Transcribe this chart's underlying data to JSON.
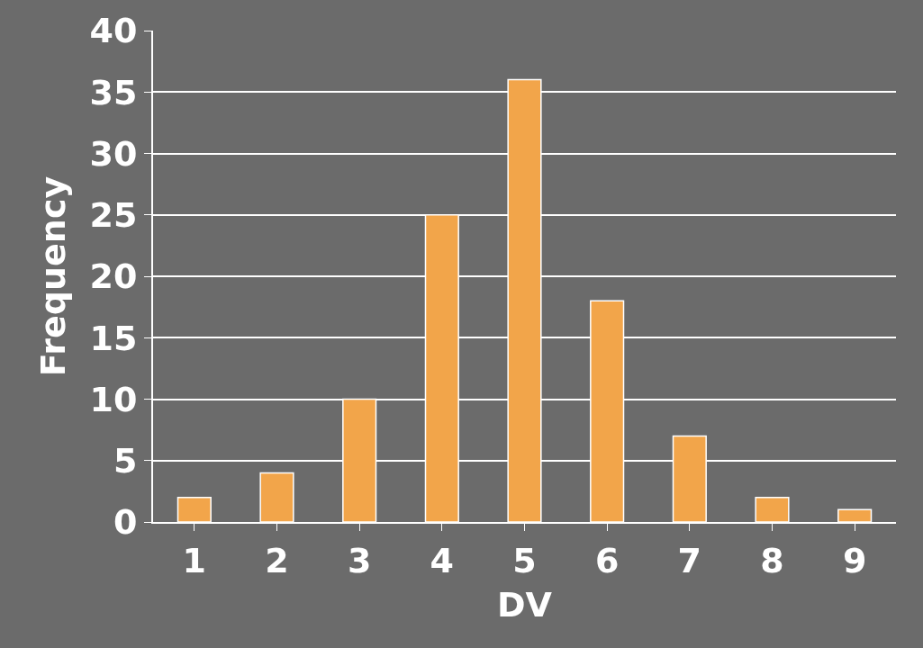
{
  "chart_data": {
    "type": "bar",
    "xlabel": "DV",
    "ylabel": "Frequency",
    "categories": [
      "1",
      "2",
      "3",
      "4",
      "5",
      "6",
      "7",
      "8",
      "9"
    ],
    "values": [
      2,
      4,
      10,
      25,
      36,
      18,
      7,
      2,
      1
    ],
    "color": "#f2a54a",
    "ylim": [
      0,
      40
    ],
    "yticks": [
      0,
      5,
      10,
      15,
      20,
      25,
      30,
      35,
      40
    ],
    "grid": "y"
  }
}
